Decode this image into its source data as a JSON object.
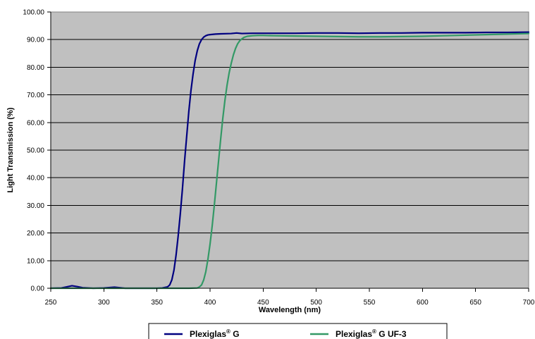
{
  "chart_data": {
    "type": "line",
    "xlabel": "Wavelength (nm)",
    "ylabel": "Light Transmission (%)",
    "xlim": [
      250,
      700
    ],
    "ylim": [
      0,
      100
    ],
    "x_ticks": [
      "250",
      "300",
      "350",
      "400",
      "450",
      "500",
      "550",
      "600",
      "650",
      "700"
    ],
    "y_ticks": [
      "0.00",
      "10.00",
      "20.00",
      "30.00",
      "40.00",
      "50.00",
      "60.00",
      "70.00",
      "80.00",
      "90.00",
      "100.00"
    ],
    "grid": "horizontal",
    "plot_background": "#c0c0c0",
    "legend_position": "bottom",
    "series": [
      {
        "name": "Plexiglas® G",
        "legend_base": "Plexiglas",
        "legend_sup": "®",
        "legend_suffix": " G",
        "color": "#000080",
        "x": [
          250,
          260,
          265,
          270,
          275,
          280,
          290,
          300,
          310,
          315,
          320,
          330,
          340,
          350,
          355,
          360,
          362,
          364,
          366,
          368,
          370,
          372,
          374,
          376,
          378,
          380,
          382,
          384,
          386,
          388,
          390,
          392,
          394,
          396,
          398,
          400,
          405,
          410,
          420,
          425,
          430,
          440,
          450,
          460,
          480,
          500,
          520,
          540,
          560,
          580,
          600,
          620,
          640,
          660,
          680,
          700
        ],
        "y": [
          0.0,
          0.1,
          0.5,
          0.9,
          0.6,
          0.2,
          0.0,
          0.1,
          0.4,
          0.2,
          0.0,
          0.0,
          0.0,
          0.0,
          0.1,
          0.5,
          1.2,
          3.0,
          6.5,
          12.0,
          19.0,
          27.0,
          36.0,
          46.0,
          55.0,
          64.0,
          71.5,
          77.5,
          82.5,
          86.0,
          88.5,
          90.0,
          90.9,
          91.4,
          91.7,
          91.8,
          92.0,
          92.1,
          92.2,
          92.4,
          92.2,
          92.3,
          92.3,
          92.3,
          92.3,
          92.4,
          92.4,
          92.3,
          92.4,
          92.4,
          92.5,
          92.5,
          92.5,
          92.6,
          92.6,
          92.7
        ]
      },
      {
        "name": "Plexiglas® G UF-3",
        "legend_base": "Plexiglas",
        "legend_sup": "®",
        "legend_suffix": " G UF-3",
        "color": "#339966",
        "x": [
          250,
          300,
          350,
          380,
          388,
          390,
          392,
          394,
          396,
          398,
          400,
          402,
          404,
          406,
          408,
          410,
          412,
          414,
          416,
          418,
          420,
          422,
          424,
          426,
          428,
          430,
          432,
          435,
          440,
          445,
          450,
          460,
          480,
          500,
          520,
          540,
          560,
          580,
          600,
          620,
          640,
          660,
          680,
          700
        ],
        "y": [
          0.0,
          0.0,
          0.0,
          0.0,
          0.1,
          0.5,
          1.2,
          3.0,
          6.0,
          10.5,
          16.0,
          22.5,
          30.0,
          38.0,
          46.0,
          54.0,
          61.5,
          68.0,
          73.5,
          78.0,
          81.5,
          84.5,
          86.8,
          88.5,
          89.6,
          90.3,
          90.8,
          91.2,
          91.4,
          91.5,
          91.5,
          91.4,
          91.3,
          91.2,
          91.1,
          91.0,
          91.0,
          91.1,
          91.2,
          91.4,
          91.6,
          91.8,
          92.0,
          92.2
        ]
      }
    ]
  }
}
